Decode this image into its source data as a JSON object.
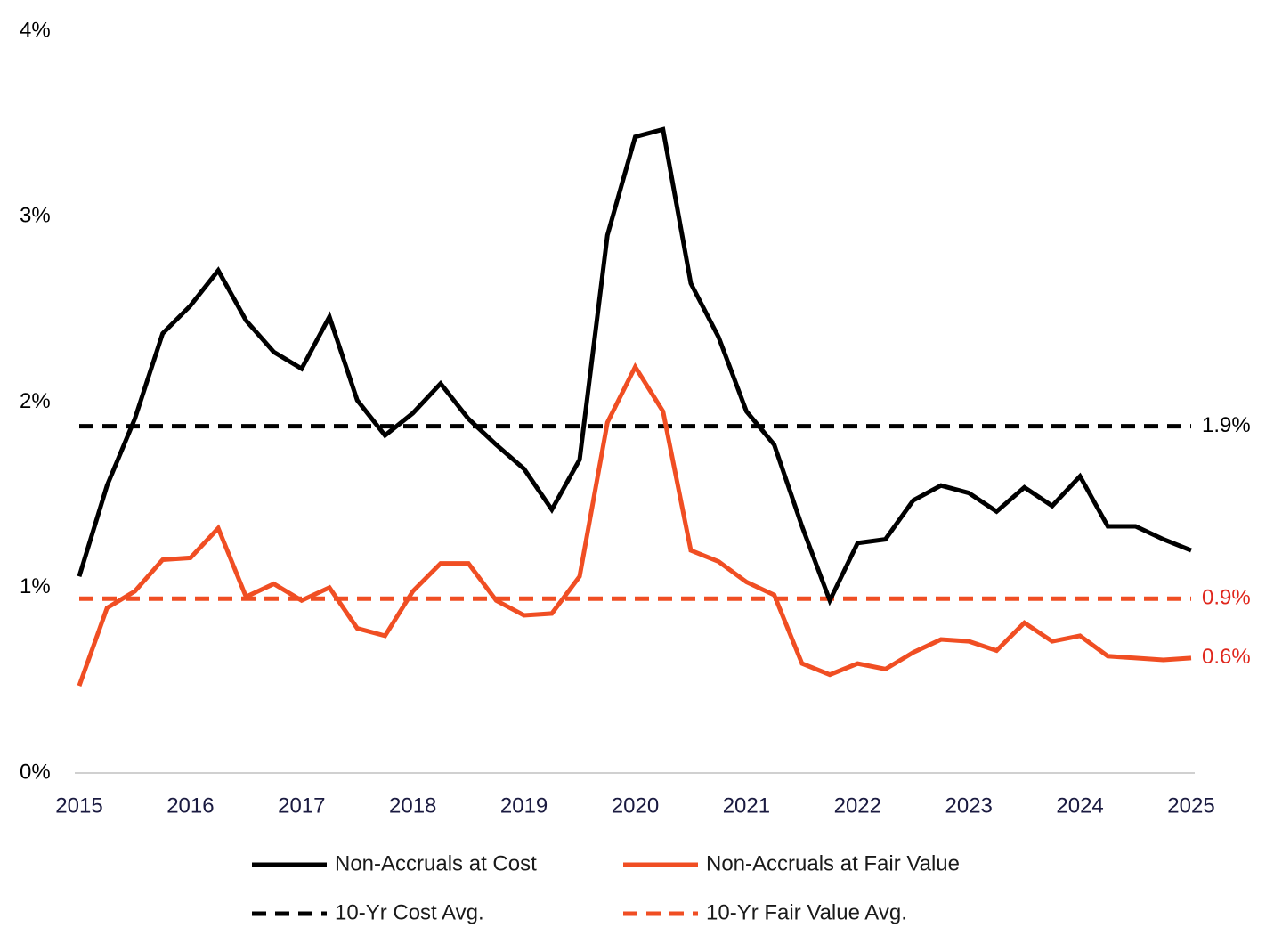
{
  "chart_data": {
    "type": "line",
    "x": [
      2015,
      2015.25,
      2015.5,
      2015.75,
      2016,
      2016.25,
      2016.5,
      2016.75,
      2017,
      2017.25,
      2017.5,
      2017.75,
      2018,
      2018.25,
      2018.5,
      2018.75,
      2019,
      2019.25,
      2019.5,
      2019.75,
      2020,
      2020.25,
      2020.5,
      2020.75,
      2021,
      2021.25,
      2021.5,
      2021.75,
      2022,
      2022.25,
      2022.5,
      2022.75,
      2023,
      2023.25,
      2023.5,
      2023.75,
      2024,
      2024.25,
      2024.5,
      2024.75,
      2025
    ],
    "xlim": [
      2015,
      2025
    ],
    "xticks": [
      2015,
      2016,
      2017,
      2018,
      2019,
      2020,
      2021,
      2022,
      2023,
      2024,
      2025
    ],
    "ylim": [
      0,
      4
    ],
    "yticks": [
      {
        "value": 0,
        "label": "0%"
      },
      {
        "value": 1,
        "label": "1%"
      },
      {
        "value": 2,
        "label": "2%"
      },
      {
        "value": 3,
        "label": "3%"
      },
      {
        "value": 4,
        "label": "4%"
      }
    ],
    "series": [
      {
        "name": "Non-Accruals at Cost",
        "color": "#000000",
        "values": [
          1.06,
          1.55,
          1.91,
          2.37,
          2.52,
          2.71,
          2.44,
          2.27,
          2.18,
          2.46,
          2.01,
          1.82,
          1.94,
          2.1,
          1.91,
          1.77,
          1.64,
          1.42,
          1.69,
          2.9,
          3.43,
          3.47,
          2.64,
          2.35,
          1.95,
          1.77,
          1.33,
          0.93,
          1.24,
          1.26,
          1.47,
          1.55,
          1.51,
          1.41,
          1.54,
          1.44,
          1.6,
          1.33,
          1.33,
          1.26,
          1.2
        ]
      },
      {
        "name": "Non-Accruals at Fair Value",
        "color": "#f04e23",
        "values": [
          0.47,
          0.89,
          0.98,
          1.15,
          1.16,
          1.32,
          0.95,
          1.02,
          0.93,
          1.0,
          0.78,
          0.74,
          0.98,
          1.13,
          1.13,
          0.93,
          0.85,
          0.86,
          1.06,
          1.89,
          2.19,
          1.95,
          1.2,
          1.14,
          1.03,
          0.96,
          0.59,
          0.53,
          0.59,
          0.56,
          0.65,
          0.72,
          0.71,
          0.66,
          0.81,
          0.71,
          0.74,
          0.63,
          0.62,
          0.61,
          0.62
        ],
        "last_label": "0.6%",
        "label_color": "#e0281e"
      }
    ],
    "reference_lines": [
      {
        "name": "10-Yr Cost Avg.",
        "color": "#000000",
        "value": 1.87,
        "label": "1.9%",
        "label_color": "#000000"
      },
      {
        "name": "10-Yr Fair Value Avg.",
        "color": "#f04e23",
        "value": 0.94,
        "label": "0.9%",
        "label_color": "#e0281e"
      }
    ]
  }
}
